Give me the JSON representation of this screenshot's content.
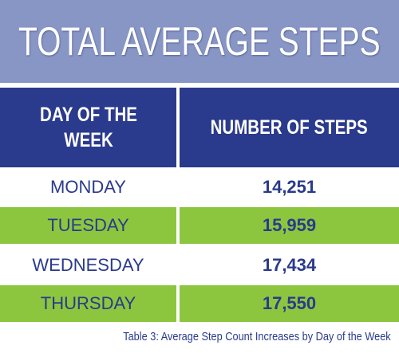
{
  "header": {
    "title": "TOTAL AVERAGE STEPS"
  },
  "table": {
    "columns": [
      "DAY OF THE WEEK",
      "NUMBER OF STEPS"
    ],
    "rows": [
      [
        "MONDAY",
        "14,251"
      ],
      [
        "TUESDAY",
        "15,959"
      ],
      [
        "WEDNESDAY",
        "17,434"
      ],
      [
        "THURSDAY",
        "17,550"
      ]
    ]
  },
  "caption": "Table 3: Average Step Count Increases by Day of the Week"
}
